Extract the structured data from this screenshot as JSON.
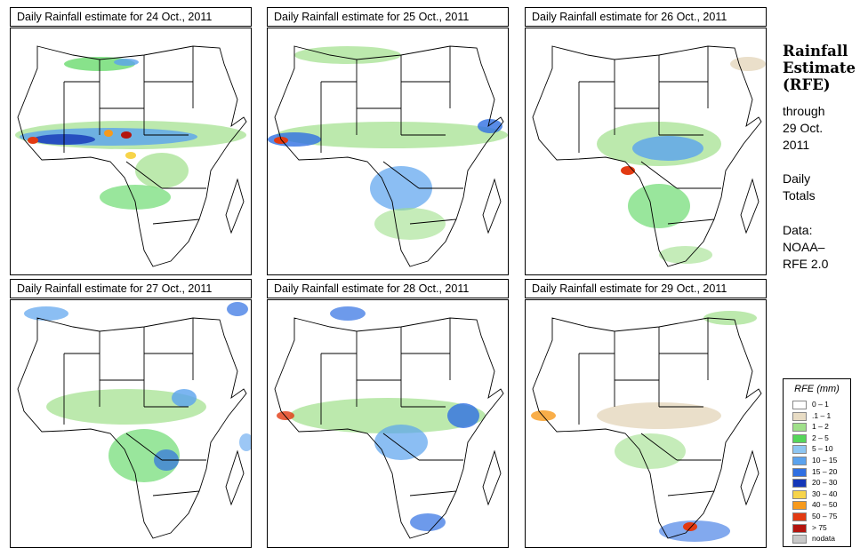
{
  "panels": [
    {
      "title": "Daily Rainfall estimate for  24 Oct., 2011"
    },
    {
      "title": "Daily Rainfall estimate for  25 Oct., 2011"
    },
    {
      "title": "Daily Rainfall estimate for  26 Oct., 2011"
    },
    {
      "title": "Daily Rainfall estimate for  27 Oct., 2011"
    },
    {
      "title": "Daily Rainfall estimate for  28 Oct., 2011"
    },
    {
      "title": "Daily Rainfall estimate for  29 Oct., 2011"
    }
  ],
  "sidebar": {
    "title_line1": "Rainfall",
    "title_line2": "Estimate",
    "title_line3": "(RFE)",
    "through": "through",
    "date_line1": "29 Oct.",
    "date_line2": "2011",
    "totals_line1": "Daily",
    "totals_line2": "Totals",
    "data_line1": "Data:",
    "data_line2": "NOAA–",
    "data_line3": "RFE 2.0"
  },
  "legend": {
    "title": "RFE (mm)",
    "items": [
      {
        "label": "0 – 1",
        "color": "#ffffff"
      },
      {
        "label": ".1 – 1",
        "color": "#e8dcc4"
      },
      {
        "label": "1 – 2",
        "color": "#9fe08a"
      },
      {
        "label": "2 – 5",
        "color": "#55d65a"
      },
      {
        "label": "5 – 10",
        "color": "#8ec6f2"
      },
      {
        "label": "10 – 15",
        "color": "#5aa2ee"
      },
      {
        "label": "15 – 20",
        "color": "#2f6fe2"
      },
      {
        "label": "20 – 30",
        "color": "#1437b8"
      },
      {
        "label": "30 – 40",
        "color": "#f7d44a"
      },
      {
        "label": "40 – 50",
        "color": "#f79a1c"
      },
      {
        "label": "50 – 75",
        "color": "#e23a12"
      },
      {
        "label": "> 75",
        "color": "#b4140e"
      },
      {
        "label": "nodata",
        "color": "#c8c8c8"
      }
    ]
  }
}
